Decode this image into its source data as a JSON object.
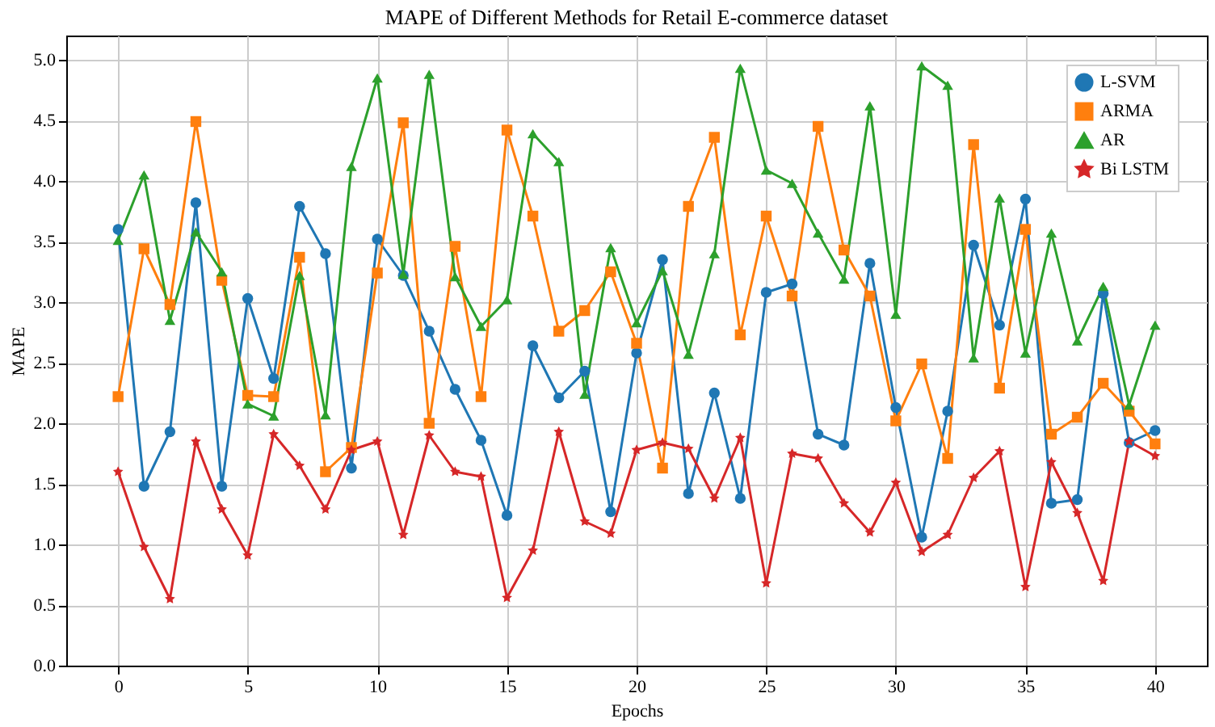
{
  "chart_data": {
    "type": "line",
    "title": "MAPE of Different Methods for Retail E-commerce dataset",
    "xlabel": "Epochs",
    "ylabel": "MAPE",
    "x": [
      0,
      1,
      2,
      3,
      4,
      5,
      6,
      7,
      8,
      9,
      10,
      11,
      12,
      13,
      14,
      15,
      16,
      17,
      18,
      19,
      20,
      21,
      22,
      23,
      24,
      25,
      26,
      27,
      28,
      29,
      30,
      31,
      32,
      33,
      34,
      35,
      36,
      37,
      38,
      39,
      40
    ],
    "series": [
      {
        "name": "L-SVM",
        "color": "#1f77b4",
        "marker": "circle",
        "values": [
          3.6,
          1.48,
          1.93,
          3.82,
          1.48,
          3.03,
          2.37,
          3.79,
          3.4,
          1.63,
          3.52,
          3.22,
          2.76,
          2.28,
          1.86,
          1.24,
          2.64,
          2.21,
          2.43,
          1.27,
          2.58,
          3.35,
          1.42,
          2.25,
          1.38,
          3.08,
          3.15,
          1.91,
          1.82,
          3.32,
          2.13,
          1.06,
          2.1,
          3.47,
          2.81,
          3.85,
          1.34,
          1.37,
          3.07,
          1.84,
          1.94
        ]
      },
      {
        "name": "ARMA",
        "color": "#ff7f0e",
        "marker": "square",
        "values": [
          2.22,
          3.44,
          2.98,
          4.49,
          3.18,
          2.23,
          2.22,
          3.37,
          1.6,
          1.8,
          3.24,
          4.48,
          2.0,
          3.46,
          2.22,
          4.42,
          3.71,
          2.76,
          2.93,
          3.25,
          2.66,
          1.63,
          3.79,
          4.36,
          2.73,
          3.71,
          3.05,
          4.45,
          3.43,
          3.05,
          2.02,
          2.49,
          1.71,
          4.3,
          2.29,
          3.6,
          1.91,
          2.05,
          2.33,
          2.1,
          1.83
        ]
      },
      {
        "name": "AR",
        "color": "#2ca02c",
        "marker": "triangle",
        "values": [
          3.51,
          4.05,
          2.85,
          3.58,
          3.25,
          2.16,
          2.06,
          3.22,
          2.07,
          4.12,
          4.85,
          3.23,
          4.88,
          3.21,
          2.8,
          3.02,
          4.39,
          4.16,
          2.24,
          3.45,
          2.83,
          3.26,
          2.57,
          3.4,
          4.93,
          4.09,
          3.98,
          3.57,
          3.19,
          4.62,
          2.9,
          4.95,
          4.79,
          2.54,
          3.86,
          2.58,
          3.57,
          2.68,
          3.13,
          2.15,
          2.81
        ]
      },
      {
        "name": "Bi LSTM",
        "color": "#d62728",
        "marker": "star",
        "values": [
          1.6,
          0.98,
          0.55,
          1.85,
          1.29,
          0.91,
          1.91,
          1.65,
          1.29,
          1.78,
          1.85,
          1.08,
          1.9,
          1.6,
          1.56,
          0.56,
          0.95,
          1.93,
          1.19,
          1.09,
          1.78,
          1.84,
          1.79,
          1.38,
          1.88,
          0.68,
          1.75,
          1.71,
          1.34,
          1.1,
          1.51,
          0.94,
          1.08,
          1.55,
          1.77,
          0.65,
          1.68,
          1.26,
          0.7,
          1.85,
          1.73
        ]
      }
    ],
    "xlim": [
      -2,
      42
    ],
    "xticks": [
      0,
      5,
      10,
      15,
      20,
      25,
      30,
      35,
      40
    ],
    "ylim": [
      0,
      5.2
    ],
    "yticks": [
      {
        "value": 0,
        "label": "0.0"
      },
      {
        "value": 0.5,
        "label": "0.5"
      },
      {
        "value": 1,
        "label": "1.0"
      },
      {
        "value": 1.5,
        "label": "1.5"
      },
      {
        "value": 2,
        "label": "2.0"
      },
      {
        "value": 2.5,
        "label": "2.5"
      },
      {
        "value": 3,
        "label": "3.0"
      },
      {
        "value": 3.5,
        "label": "3.5"
      },
      {
        "value": 4,
        "label": "4.0"
      },
      {
        "value": 4.5,
        "label": "4.5"
      },
      {
        "value": 5,
        "label": "5.0"
      }
    ],
    "grid": true,
    "legend": "top right",
    "line_style": "solid"
  }
}
